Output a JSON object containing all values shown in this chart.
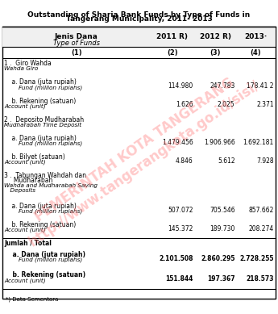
{
  "title_line1": "Outstanding of Sharia Bank Funds by Type of Funds in",
  "title_line2": "Tangerang Municipality, 2011- 2013",
  "col_headers": [
    "Jenis Dana\nType of Funds",
    "2011 R)",
    "2012 R)",
    "2013·"
  ],
  "col_subheaders": [
    "(1)",
    "(2)",
    "(3)",
    "(4)"
  ],
  "rows": [
    {
      "label": "1 .  Giro Wahda\nWahda Giro",
      "vals": [
        "",
        "",
        ""
      ],
      "indent": 0,
      "bold": false
    },
    {
      "label": "    a. Dana (juta rupiah)\n        Fund (million rupiahs)",
      "vals": [
        "114.980",
        "247.783",
        "178.41 2"
      ],
      "indent": 1,
      "bold": false
    },
    {
      "label": "    b. Rekening (satuan)\nAccount (unit)",
      "vals": [
        "1.626",
        "2.025",
        "2.371"
      ],
      "indent": 1,
      "bold": false
    },
    {
      "label": "2 .  Deposito Mudharabah\nMudharabah Time Deposit",
      "vals": [
        "",
        "",
        ""
      ],
      "indent": 0,
      "bold": false
    },
    {
      "label": "    a. Dana (juta rupiah)\n        Fund (million rupiahs)",
      "vals": [
        "1.479.456",
        "1.906.966",
        "1.692.181"
      ],
      "indent": 1,
      "bold": false
    },
    {
      "label": "    b. Bilyet (satuan)\nAccount (unit)",
      "vals": [
        "4.846",
        "5.612",
        "7.928"
      ],
      "indent": 1,
      "bold": false
    },
    {
      "label": "3 .  Tabungan Wahdah dan\n     Mudharabah\nWahda and Mudharabah Saving\n  Deposits",
      "vals": [
        "",
        "",
        ""
      ],
      "indent": 0,
      "bold": false
    },
    {
      "label": "    a. Dana (juta rupiah)\n        Fund (million rupiahs)",
      "vals": [
        "507.072",
        "705.546",
        "857.662"
      ],
      "indent": 1,
      "bold": false
    },
    {
      "label": "    b. Rekening (satuan)\nAccount (unit)",
      "vals": [
        "145.372",
        "189.730",
        "208.274"
      ],
      "indent": 1,
      "bold": false
    },
    {
      "label": "Jumlah / Total",
      "vals": [
        "",
        "",
        ""
      ],
      "indent": 0,
      "bold": true
    },
    {
      "label": "    a. Dana (juta rupiah)\n        Fund (million rupiahs)",
      "vals": [
        "2.101.508",
        "2.860.295",
        "2.728.255"
      ],
      "indent": 1,
      "bold": true
    },
    {
      "label": "    b. Rekening (satuan)\nAccount (unit)",
      "vals": [
        "151.844",
        "197.367",
        "218.573"
      ],
      "indent": 1,
      "bold": true
    }
  ],
  "footnote": "*) Data Sementara",
  "watermark_text": "PEMERINTAH KOTA TANGERANG\nhttp://www.tangerangkota.go.id/sisi/",
  "watermark_color": "#FF6666",
  "bg_color": "#FFFFFF",
  "header_bg": "#E8E8E8",
  "line_color": "#000000",
  "text_color": "#000000"
}
